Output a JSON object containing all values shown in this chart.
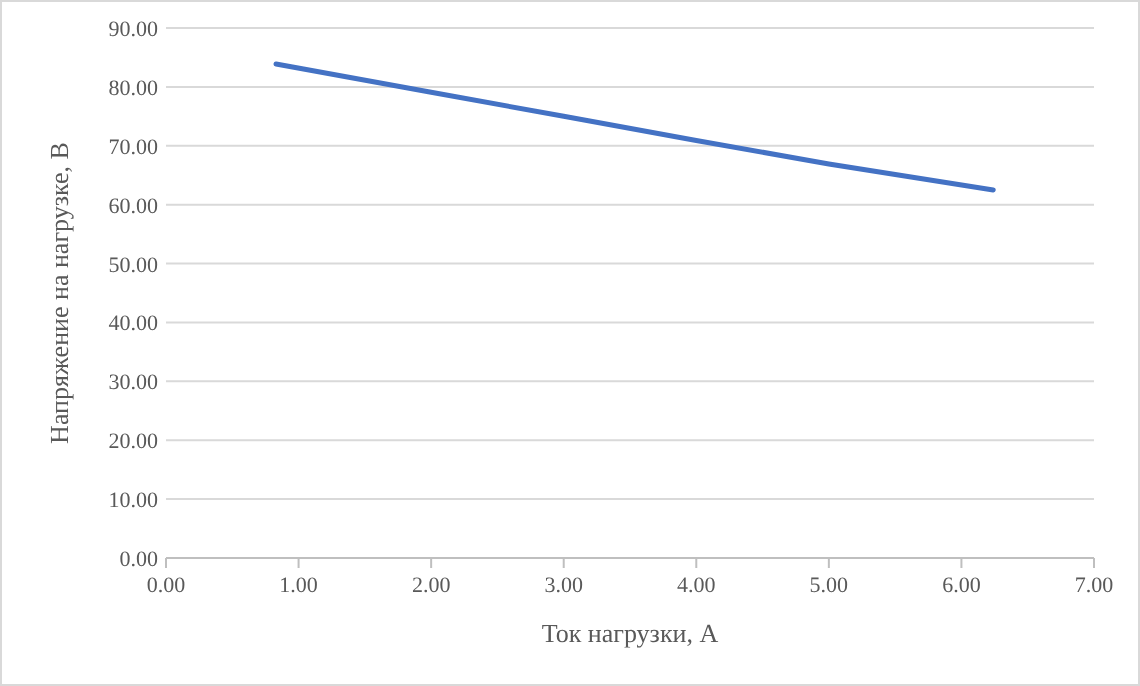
{
  "chart_data": {
    "type": "line",
    "xlabel": "Ток нагрузки, А",
    "ylabel": "Напряжение на нагрузке, В",
    "series": [
      {
        "color": "#4472c4",
        "x": [
          0.83,
          2.0,
          3.0,
          4.0,
          5.0,
          6.24
        ],
        "values": [
          83.9,
          79.1,
          75.0,
          70.9,
          66.9,
          62.5
        ]
      }
    ],
    "xlim": [
      0,
      7
    ],
    "xticks": [
      {
        "value": 0,
        "label": "0.00"
      },
      {
        "value": 1,
        "label": "1.00"
      },
      {
        "value": 2,
        "label": "2.00"
      },
      {
        "value": 3,
        "label": "3.00"
      },
      {
        "value": 4,
        "label": "4.00"
      },
      {
        "value": 5,
        "label": "5.00"
      },
      {
        "value": 6,
        "label": "6.00"
      },
      {
        "value": 7,
        "label": "7.00"
      }
    ],
    "ylim": [
      0,
      90
    ],
    "yticks": [
      {
        "value": 0,
        "label": "0.00"
      },
      {
        "value": 10,
        "label": "10.00"
      },
      {
        "value": 20,
        "label": "20.00"
      },
      {
        "value": 30,
        "label": "30.00"
      },
      {
        "value": 40,
        "label": "40.00"
      },
      {
        "value": 50,
        "label": "50.00"
      },
      {
        "value": 60,
        "label": "60.00"
      },
      {
        "value": 70,
        "label": "70.00"
      },
      {
        "value": 80,
        "label": "80.00"
      },
      {
        "value": 90,
        "label": "90.00"
      }
    ],
    "grid": "y",
    "marker": "none",
    "line_style": "solid"
  }
}
